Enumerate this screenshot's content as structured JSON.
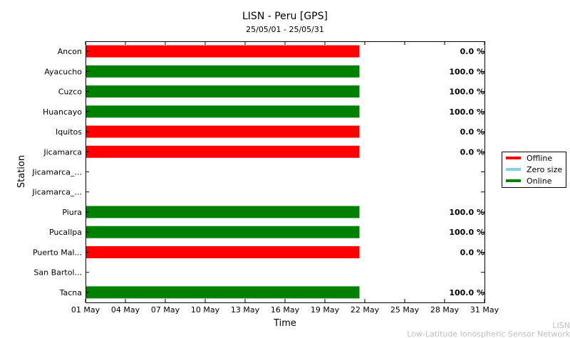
{
  "chart_data": {
    "type": "bar",
    "orientation": "horizontal",
    "title": "LISN - Peru [GPS]",
    "subtitle": "25/05/01 - 25/05/31",
    "xlabel": "Time",
    "ylabel": "Station",
    "x_ticks": [
      "01 May",
      "04 May",
      "07 May",
      "10 May",
      "13 May",
      "16 May",
      "19 May",
      "22 May",
      "25 May",
      "28 May",
      "31 May"
    ],
    "x_range_days": [
      1,
      31
    ],
    "grid": false,
    "legend_position": "right",
    "legend": [
      {
        "name": "Offline",
        "color": "#ff0000"
      },
      {
        "name": "Zero size",
        "color": "#87ceeb"
      },
      {
        "name": "Online",
        "color": "#008000"
      }
    ],
    "stations": [
      {
        "name": "Ancon",
        "status": "Offline",
        "start_day": 1,
        "end_day": 21.6,
        "percent": "0.0 %"
      },
      {
        "name": "Ayacucho",
        "status": "Online",
        "start_day": 1,
        "end_day": 21.6,
        "percent": "100.0 %"
      },
      {
        "name": "Cuzco",
        "status": "Online",
        "start_day": 1,
        "end_day": 21.6,
        "percent": "100.0 %"
      },
      {
        "name": "Huancayo",
        "status": "Online",
        "start_day": 1,
        "end_day": 21.6,
        "percent": "100.0 %"
      },
      {
        "name": "Iquitos",
        "status": "Offline",
        "start_day": 1,
        "end_day": 21.6,
        "percent": "0.0 %"
      },
      {
        "name": "Jicamarca",
        "status": "Offline",
        "start_day": 1,
        "end_day": 21.6,
        "percent": "0.0 %"
      },
      {
        "name": "Jicamarca_...",
        "status": null,
        "start_day": null,
        "end_day": null,
        "percent": ""
      },
      {
        "name": "Jicamarca_...",
        "status": null,
        "start_day": null,
        "end_day": null,
        "percent": ""
      },
      {
        "name": "Piura",
        "status": "Online",
        "start_day": 1,
        "end_day": 21.6,
        "percent": "100.0 %"
      },
      {
        "name": "Pucallpa",
        "status": "Online",
        "start_day": 1,
        "end_day": 21.6,
        "percent": "100.0 %"
      },
      {
        "name": "Puerto Mal...",
        "status": "Offline",
        "start_day": 1,
        "end_day": 21.6,
        "percent": "0.0 %"
      },
      {
        "name": "San Bartol...",
        "status": null,
        "start_day": null,
        "end_day": null,
        "percent": ""
      },
      {
        "name": "Tacna",
        "status": "Online",
        "start_day": 1,
        "end_day": 21.6,
        "percent": "100.0 %"
      }
    ]
  },
  "watermark": {
    "line1": "LISN",
    "line2": "Low-Latitude Ionospheric Sensor Network"
  }
}
